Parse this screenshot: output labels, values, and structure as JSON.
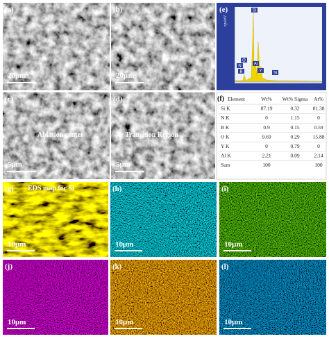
{
  "panels": [
    {
      "label": "(a)",
      "scale_bar": "20μm"
    },
    {
      "label": "(b)",
      "scale_bar": "20μm"
    },
    {
      "label": "(c)",
      "scale_bar": "5μm",
      "caption": "Ablation center"
    },
    {
      "label": "(d)",
      "scale_bar": "5μm",
      "caption": "Transition Region"
    },
    {
      "label": "(g)",
      "scale_bar": "10μm",
      "caption": "EDS map for Si"
    },
    {
      "label": "(h)",
      "scale_bar": "10μm"
    },
    {
      "label": "(i)",
      "scale_bar": "10μm"
    },
    {
      "label": "(j)",
      "scale_bar": "10μm"
    },
    {
      "label": "(k)",
      "scale_bar": "10μm"
    },
    {
      "label": "(l)",
      "scale_bar": "10μm"
    }
  ],
  "spectrum": {
    "label": "(e)",
    "y_axis_label": "cps/eV",
    "peak_labels": [
      "Si",
      "O",
      "N",
      "B",
      "Al",
      "Y",
      "Si"
    ]
  },
  "table": {
    "label": "(f)",
    "columns": [
      "Element",
      "Wt%",
      "Wt% Sigma",
      "At%"
    ],
    "rows": [
      {
        "element": "Si K",
        "wt": "87.19",
        "sigma": "0.32",
        "at": "81.38"
      },
      {
        "element": "N K",
        "wt": "0",
        "sigma": "1.15",
        "at": "0"
      },
      {
        "element": "B K",
        "wt": "0.9",
        "sigma": "0.15",
        "at": "0.59"
      },
      {
        "element": "O K",
        "wt": "9.69",
        "sigma": "0.29",
        "at": "15.88"
      },
      {
        "element": "Y K",
        "wt": "0",
        "sigma": "0.79",
        "at": "0"
      },
      {
        "element": "Al K",
        "wt": "2.21",
        "sigma": "0.09",
        "at": "2.14"
      },
      {
        "element": "Sum",
        "wt": "100",
        "at": "100"
      }
    ]
  }
}
